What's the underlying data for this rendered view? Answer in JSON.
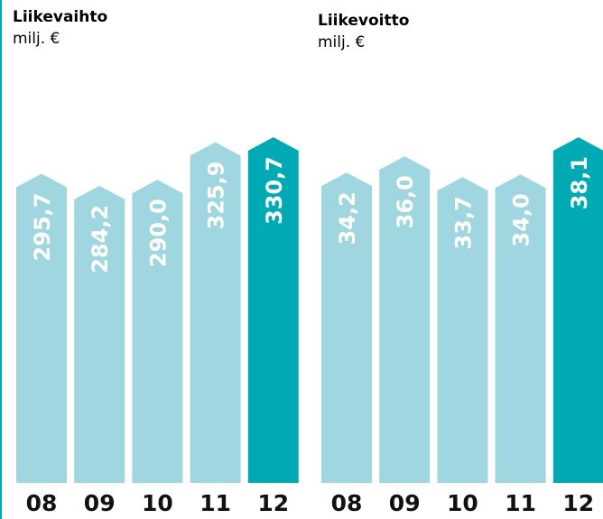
{
  "chart_data": [
    {
      "type": "bar",
      "title": "Liikevaihto",
      "subtitle": "milj. €",
      "categories": [
        "08",
        "09",
        "10",
        "11",
        "12"
      ],
      "values": [
        295.7,
        284.2,
        290.0,
        325.9,
        330.7
      ],
      "value_labels": [
        "295,7",
        "284,2",
        "290,0",
        "325,9",
        "330,7"
      ],
      "colors": [
        "#9fd6df",
        "#9fd6df",
        "#9fd6df",
        "#9fd6df",
        "#00aab5"
      ]
    },
    {
      "type": "bar",
      "title": "Liikevoitto",
      "subtitle": "milj. €",
      "categories": [
        "08",
        "09",
        "10",
        "11",
        "12"
      ],
      "values": [
        34.2,
        36.0,
        33.7,
        34.0,
        38.1
      ],
      "value_labels": [
        "34,2",
        "36,0",
        "33,7",
        "34,0",
        "38,1"
      ],
      "colors": [
        "#9fd6df",
        "#9fd6df",
        "#9fd6df",
        "#9fd6df",
        "#00aab5"
      ]
    }
  ]
}
